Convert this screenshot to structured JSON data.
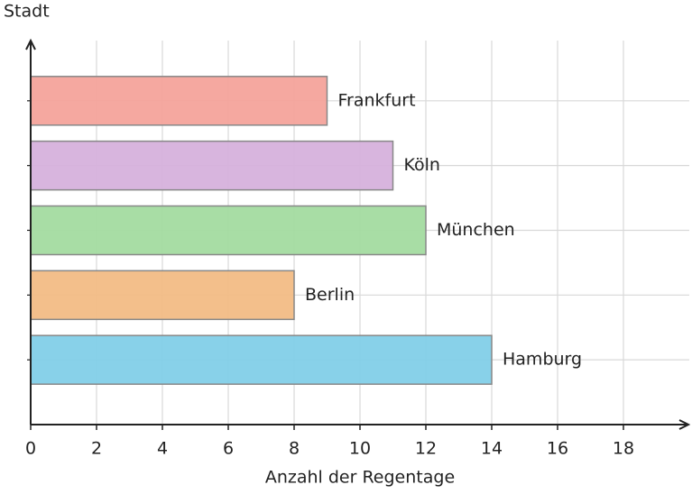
{
  "chart_data": {
    "type": "barh",
    "xlabel": "Anzahl der Regentage",
    "ylabel": "Stadt",
    "categories": [
      "Hamburg",
      "Berlin",
      "München",
      "Köln",
      "Frankfurt"
    ],
    "values": [
      14,
      8,
      12,
      11,
      9
    ],
    "colors": [
      "#82cfe8",
      "#f2bc85",
      "#a3dba0",
      "#d6b1dc",
      "#f4a39b"
    ],
    "xlim": [
      0,
      20
    ],
    "xticks": [
      0,
      2,
      4,
      6,
      8,
      10,
      12,
      14,
      16,
      18
    ],
    "grid": true
  }
}
